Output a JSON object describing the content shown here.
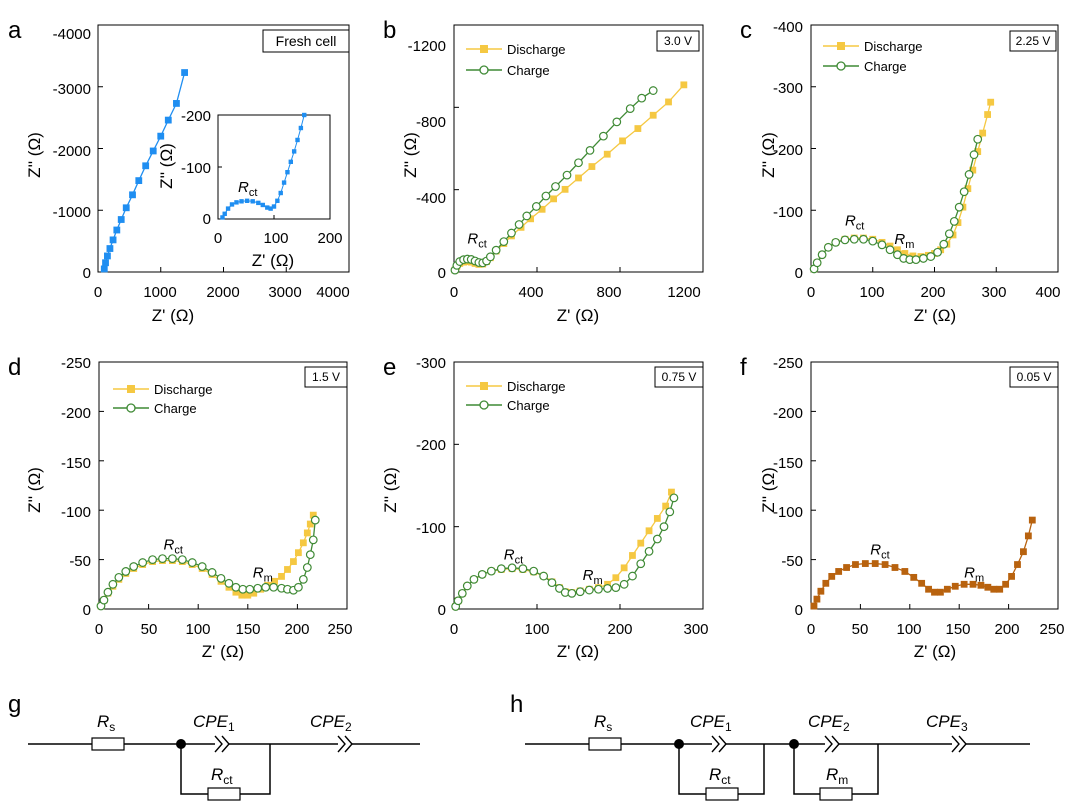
{
  "chart_data": [
    {
      "panel_id": "a",
      "type": "scatter",
      "label": "a",
      "box_label": "Fresh cell",
      "xlabel": "Z' (Ω)",
      "ylabel": "Z'' (Ω)",
      "xlim": [
        0,
        4000
      ],
      "ylim": [
        0,
        -4000
      ],
      "xticks": [
        "0",
        "1000",
        "2000",
        "3000",
        "4000"
      ],
      "yticks": [
        "0",
        "-1000",
        "-2000",
        "-3000",
        "-4000"
      ],
      "series": [
        {
          "color": "#1f8ef1",
          "marker": "square-filled",
          "x": [
            100,
            120,
            150,
            190,
            240,
            300,
            370,
            450,
            550,
            650,
            760,
            880,
            1000,
            1120,
            1250,
            1380
          ],
          "y": [
            -50,
            -150,
            -260,
            -380,
            -520,
            -680,
            -850,
            -1040,
            -1250,
            -1480,
            -1720,
            -1960,
            -2200,
            -2460,
            -2730,
            -3230
          ]
        }
      ],
      "inset": {
        "xlabel": "Z' (Ω)",
        "ylabel": "Z'' (Ω)",
        "xlim": [
          0,
          200
        ],
        "ylim": [
          0,
          -200
        ],
        "xticks": [
          "0",
          "100",
          "200"
        ],
        "yticks": [
          "0",
          "-100",
          "-200"
        ],
        "annotation": {
          "main": "R",
          "sub": "ct"
        },
        "x": [
          8,
          12,
          18,
          25,
          33,
          42,
          52,
          62,
          72,
          80,
          88,
          94,
          100,
          106,
          112,
          118,
          124,
          130,
          136,
          142,
          148,
          154
        ],
        "y": [
          -3,
          -10,
          -20,
          -28,
          -32,
          -34,
          -35,
          -34,
          -31,
          -27,
          -22,
          -20,
          -24,
          -35,
          -50,
          -70,
          -90,
          -110,
          -130,
          -152,
          -175,
          -200
        ]
      }
    },
    {
      "panel_id": "b",
      "type": "line",
      "label": "b",
      "box_label": "3.0 V",
      "xlabel": "Z' (Ω)",
      "ylabel": "Z'' (Ω)",
      "xlim": [
        0,
        1300
      ],
      "ylim": [
        0,
        -1300
      ],
      "xticks": [
        "0",
        "400",
        "800",
        "1200"
      ],
      "yticks": [
        "0",
        "-400",
        "-800",
        "-1200"
      ],
      "annotations": [
        {
          "main": "R",
          "sub": "ct",
          "x": 70,
          "y": -150
        }
      ],
      "series": [
        {
          "name": "Discharge",
          "color": "#f5c842",
          "marker": "square-filled",
          "x": [
            5,
            15,
            30,
            50,
            70,
            90,
            110,
            130,
            150,
            170,
            190,
            220,
            260,
            300,
            350,
            400,
            460,
            520,
            580,
            650,
            720,
            800,
            880,
            960,
            1040,
            1120,
            1200
          ],
          "y": [
            -10,
            -30,
            -45,
            -52,
            -55,
            -52,
            -45,
            -40,
            -42,
            -55,
            -75,
            -110,
            -150,
            -190,
            -235,
            -280,
            -330,
            -385,
            -435,
            -495,
            -555,
            -620,
            -690,
            -755,
            -825,
            -895,
            -985
          ]
        },
        {
          "name": "Charge",
          "color": "#3f8a35",
          "marker": "circle-open",
          "x": [
            5,
            15,
            30,
            50,
            70,
            90,
            110,
            130,
            150,
            170,
            190,
            220,
            260,
            300,
            340,
            380,
            430,
            480,
            530,
            590,
            650,
            710,
            780,
            850,
            920,
            980,
            1040
          ],
          "y": [
            -10,
            -35,
            -55,
            -65,
            -68,
            -66,
            -58,
            -50,
            -48,
            -58,
            -80,
            -115,
            -160,
            -205,
            -250,
            -295,
            -345,
            -400,
            -450,
            -510,
            -575,
            -640,
            -715,
            -790,
            -860,
            -915,
            -955
          ]
        }
      ]
    },
    {
      "panel_id": "c",
      "type": "line",
      "label": "c",
      "box_label": "2.25 V",
      "xlabel": "Z' (Ω)",
      "ylabel": "Z'' (Ω)",
      "xlim": [
        0,
        400
      ],
      "ylim": [
        0,
        -400
      ],
      "xticks": [
        "0",
        "100",
        "200",
        "300",
        "400"
      ],
      "yticks": [
        "0",
        "-100",
        "-200",
        "-300",
        "-400"
      ],
      "annotations": [
        {
          "main": "R",
          "sub": "ct",
          "x": 55,
          "y": -75
        },
        {
          "main": "R",
          "sub": "m",
          "x": 135,
          "y": -45
        }
      ],
      "series": [
        {
          "name": "Discharge",
          "color": "#f5c842",
          "marker": "square-filled",
          "x": [
            5,
            10,
            18,
            28,
            40,
            55,
            70,
            85,
            100,
            115,
            128,
            140,
            152,
            165,
            178,
            190,
            200,
            210,
            220,
            230,
            238,
            246,
            254,
            262,
            270,
            278,
            286,
            291
          ],
          "y": [
            -5,
            -15,
            -28,
            -40,
            -48,
            -53,
            -55,
            -55,
            -53,
            -48,
            -42,
            -36,
            -30,
            -26,
            -25,
            -27,
            -30,
            -36,
            -45,
            -60,
            -80,
            -105,
            -135,
            -165,
            -195,
            -225,
            -255,
            -275
          ]
        },
        {
          "name": "Charge",
          "color": "#3f8a35",
          "marker": "circle-open",
          "x": [
            5,
            10,
            18,
            28,
            40,
            55,
            70,
            85,
            100,
            115,
            128,
            140,
            150,
            160,
            170,
            182,
            194,
            205,
            215,
            224,
            232,
            240,
            248,
            256,
            264,
            270
          ],
          "y": [
            -5,
            -15,
            -28,
            -40,
            -48,
            -52,
            -53,
            -53,
            -50,
            -44,
            -36,
            -28,
            -22,
            -20,
            -20,
            -22,
            -25,
            -32,
            -45,
            -62,
            -82,
            -105,
            -130,
            -158,
            -190,
            -215
          ]
        }
      ]
    },
    {
      "panel_id": "d",
      "type": "line",
      "label": "d",
      "box_label": "1.5 V",
      "xlabel": "Z' (Ω)",
      "ylabel": "Z'' (Ω)",
      "xlim": [
        0,
        250
      ],
      "ylim": [
        0,
        -250
      ],
      "xticks": [
        "0",
        "50",
        "100",
        "150",
        "200",
        "250"
      ],
      "yticks": [
        "0",
        "-50",
        "-100",
        "-150",
        "-200",
        "-250"
      ],
      "annotations": [
        {
          "main": "R",
          "sub": "ct",
          "x": 65,
          "y": -60
        },
        {
          "main": "R",
          "sub": "m",
          "x": 155,
          "y": -32
        }
      ],
      "series": [
        {
          "name": "Discharge",
          "color": "#f5c842",
          "marker": "square-filled",
          "x": [
            2,
            5,
            9,
            14,
            20,
            27,
            35,
            44,
            54,
            64,
            74,
            84,
            94,
            104,
            114,
            123,
            131,
            138,
            144,
            150,
            156,
            163,
            170,
            177,
            184,
            190,
            196,
            201,
            206,
            210,
            213,
            216
          ],
          "y": [
            -3,
            -9,
            -16,
            -23,
            -30,
            -36,
            -41,
            -45,
            -48,
            -49,
            -49,
            -48,
            -45,
            -41,
            -35,
            -28,
            -22,
            -17,
            -14,
            -14,
            -16,
            -20,
            -24,
            -28,
            -33,
            -40,
            -48,
            -57,
            -67,
            -77,
            -86,
            -95
          ]
        },
        {
          "name": "Charge",
          "color": "#3f8a35",
          "marker": "circle-open",
          "x": [
            2,
            5,
            9,
            14,
            20,
            27,
            35,
            44,
            54,
            64,
            74,
            84,
            94,
            104,
            114,
            123,
            131,
            138,
            145,
            152,
            160,
            168,
            176,
            184,
            190,
            196,
            201,
            206,
            210,
            213,
            216,
            218
          ],
          "y": [
            -3,
            -9,
            -17,
            -25,
            -32,
            -38,
            -43,
            -47,
            -50,
            -51,
            -51,
            -50,
            -47,
            -43,
            -37,
            -31,
            -26,
            -22,
            -20,
            -20,
            -21,
            -22,
            -22,
            -21,
            -20,
            -19,
            -22,
            -30,
            -42,
            -55,
            -70,
            -90
          ]
        }
      ]
    },
    {
      "panel_id": "e",
      "type": "line",
      "label": "e",
      "box_label": "0.75 V",
      "xlabel": "Z' (Ω)",
      "ylabel": "Z'' (Ω)",
      "xlim": [
        0,
        300
      ],
      "ylim": [
        0,
        -300
      ],
      "xticks": [
        "0",
        "100",
        "200",
        "300"
      ],
      "yticks": [
        "0",
        "-100",
        "-200",
        "-300"
      ],
      "annotations": [
        {
          "main": "R",
          "sub": "ct",
          "x": 60,
          "y": -60
        },
        {
          "main": "R",
          "sub": "m",
          "x": 155,
          "y": -35
        }
      ],
      "series": [
        {
          "name": "Discharge",
          "color": "#f5c842",
          "marker": "square-filled",
          "x": [
            2,
            5,
            10,
            16,
            24,
            34,
            45,
            57,
            70,
            83,
            96,
            108,
            118,
            127,
            134,
            142,
            152,
            163,
            174,
            185,
            195,
            205,
            215,
            225,
            235,
            245,
            255,
            262
          ],
          "y": [
            -3,
            -10,
            -19,
            -28,
            -36,
            -42,
            -46,
            -48,
            -49,
            -48,
            -45,
            -40,
            -33,
            -26,
            -21,
            -20,
            -22,
            -24,
            -26,
            -30,
            -38,
            -50,
            -65,
            -80,
            -95,
            -110,
            -125,
            -142
          ]
        },
        {
          "name": "Charge",
          "color": "#3f8a35",
          "marker": "circle-open",
          "x": [
            2,
            5,
            10,
            16,
            24,
            34,
            45,
            57,
            70,
            83,
            96,
            108,
            118,
            127,
            134,
            142,
            152,
            163,
            174,
            185,
            195,
            205,
            215,
            225,
            235,
            245,
            253,
            260,
            265
          ],
          "y": [
            -3,
            -10,
            -19,
            -28,
            -36,
            -42,
            -46,
            -49,
            -50,
            -49,
            -46,
            -40,
            -32,
            -25,
            -20,
            -19,
            -21,
            -23,
            -24,
            -25,
            -26,
            -30,
            -40,
            -55,
            -70,
            -85,
            -100,
            -118,
            -135
          ]
        }
      ]
    },
    {
      "panel_id": "f",
      "type": "scatter",
      "label": "f",
      "box_label": "0.05 V",
      "xlabel": "Z' (Ω)",
      "ylabel": "Z'' (Ω)",
      "xlim": [
        0,
        250
      ],
      "ylim": [
        0,
        -250
      ],
      "xticks": [
        "0",
        "50",
        "100",
        "150",
        "200",
        "250"
      ],
      "yticks": [
        "0",
        "-50",
        "-100",
        "-150",
        "-200",
        "-250"
      ],
      "annotations": [
        {
          "main": "R",
          "sub": "ct",
          "x": 60,
          "y": -55
        },
        {
          "main": "R",
          "sub": "m",
          "x": 155,
          "y": -32
        }
      ],
      "series": [
        {
          "color": "#b8620e",
          "marker": "square-filled",
          "x": [
            3,
            6,
            10,
            15,
            21,
            28,
            36,
            45,
            55,
            65,
            75,
            85,
            95,
            104,
            112,
            119,
            125,
            131,
            138,
            146,
            155,
            164,
            172,
            179,
            185,
            191,
            197,
            203,
            209,
            215,
            220,
            224
          ],
          "y": [
            -3,
            -10,
            -18,
            -26,
            -33,
            -38,
            -42,
            -45,
            -46,
            -46,
            -45,
            -42,
            -38,
            -32,
            -26,
            -20,
            -17,
            -17,
            -20,
            -23,
            -25,
            -25,
            -24,
            -22,
            -20,
            -20,
            -25,
            -33,
            -45,
            -58,
            -74,
            -90
          ]
        }
      ]
    }
  ],
  "circuits": [
    {
      "label": "g",
      "rs": {
        "main": "R",
        "sub": "s"
      },
      "cpe1": {
        "main": "CPE",
        "sub": "1"
      },
      "cpe2": {
        "main": "CPE",
        "sub": "2"
      },
      "rct": {
        "main": "R",
        "sub": "ct"
      }
    },
    {
      "label": "h",
      "rs": {
        "main": "R",
        "sub": "s"
      },
      "cpe1": {
        "main": "CPE",
        "sub": "1"
      },
      "cpe2": {
        "main": "CPE",
        "sub": "2"
      },
      "cpe3": {
        "main": "CPE",
        "sub": "3"
      },
      "rct": {
        "main": "R",
        "sub": "ct"
      },
      "rm": {
        "main": "R",
        "sub": "m"
      }
    }
  ]
}
